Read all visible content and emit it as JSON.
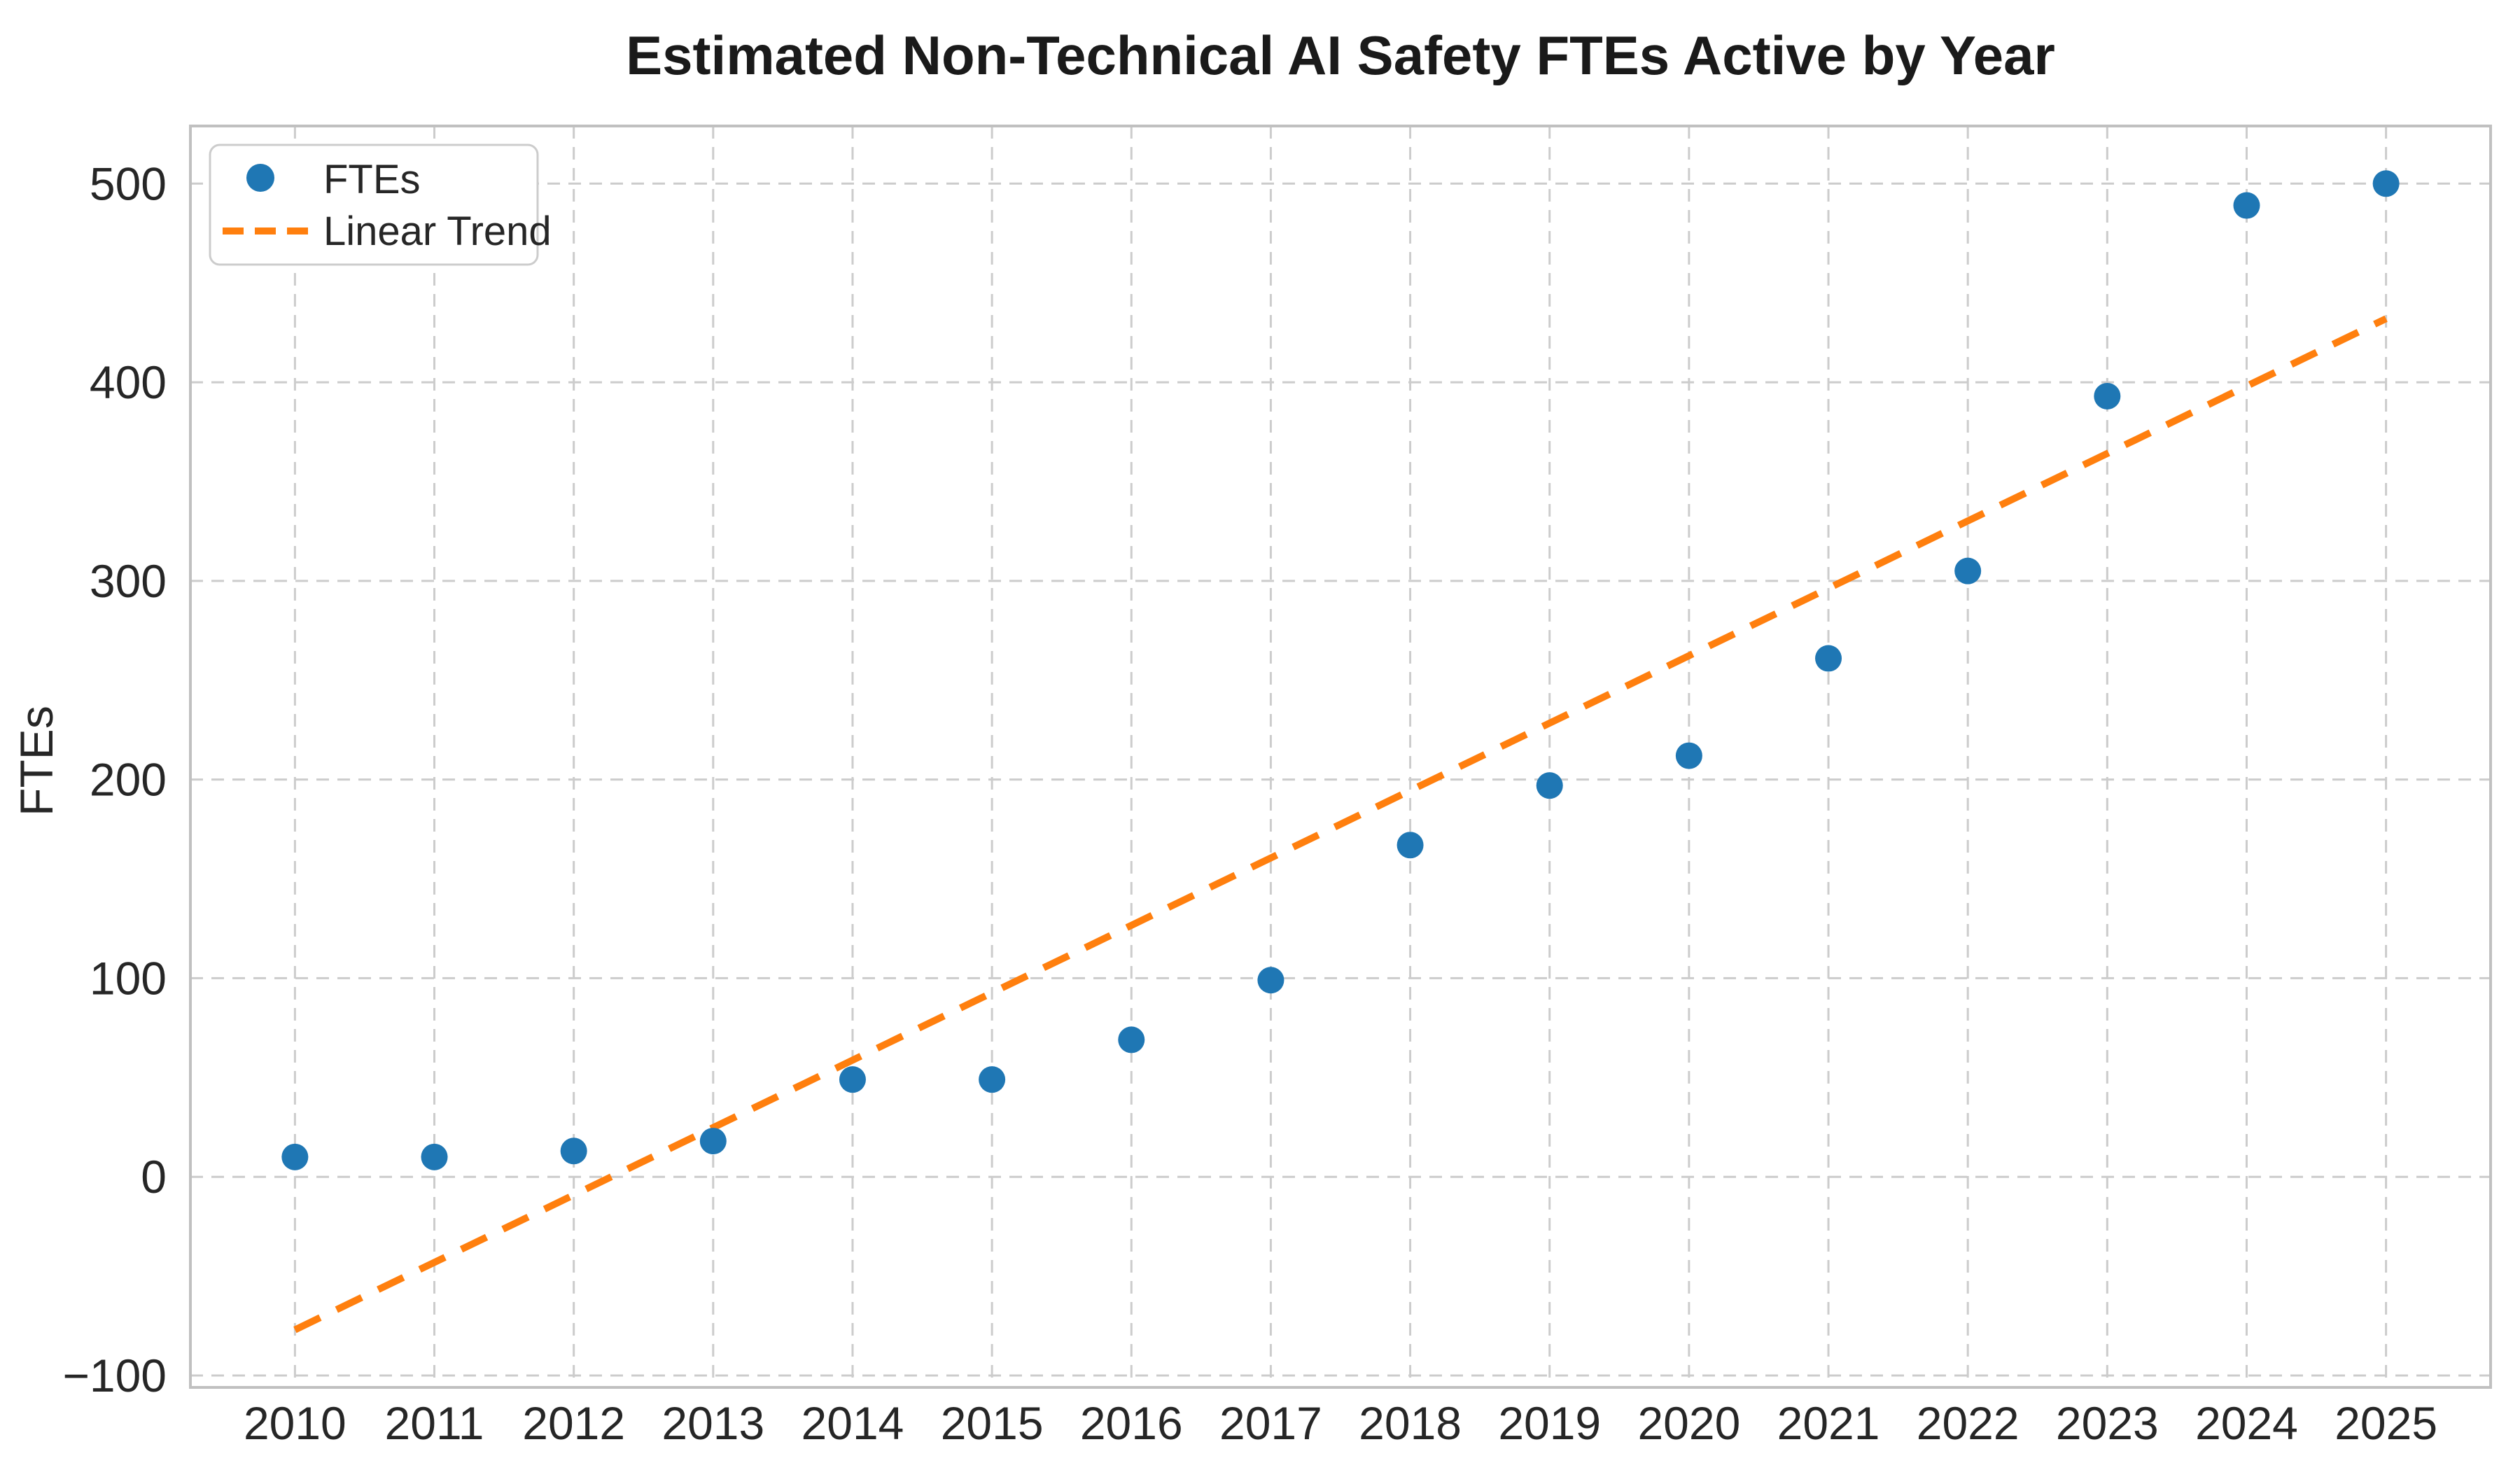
{
  "chart_data": {
    "type": "scatter",
    "title": "Estimated Non-Technical AI Safety FTEs Active by Year",
    "xlabel": "",
    "ylabel": "FTEs",
    "x": [
      2010,
      2011,
      2012,
      2013,
      2014,
      2015,
      2016,
      2017,
      2018,
      2019,
      2020,
      2021,
      2022,
      2023,
      2024,
      2025
    ],
    "series": [
      {
        "name": "FTEs",
        "type": "scatter",
        "color": "#1f77b4",
        "values": [
          10,
          10,
          13,
          18,
          49,
          49,
          69,
          99,
          167,
          197,
          212,
          261,
          305,
          393,
          489,
          500
        ]
      },
      {
        "name": "Linear Trend",
        "type": "line",
        "style": "dashed",
        "color": "#ff7f0e",
        "endpoints_x": [
          2010,
          2025
        ],
        "endpoints_y": [
          -77,
          432
        ],
        "slope_per_year": 34.0
      }
    ],
    "xticks": [
      "2010",
      "2011",
      "2012",
      "2013",
      "2014",
      "2015",
      "2016",
      "2017",
      "2018",
      "2019",
      "2020",
      "2021",
      "2022",
      "2023",
      "2024",
      "2025"
    ],
    "yticks": [
      "−100",
      "0",
      "100",
      "200",
      "300",
      "400",
      "500"
    ],
    "ytick_values": [
      -100,
      0,
      100,
      200,
      300,
      400,
      500
    ],
    "xlim": [
      2009.25,
      2025.75
    ],
    "ylim": [
      -106,
      529
    ],
    "grid": "dashed-both-axes",
    "legend": {
      "position": "upper-left",
      "entries": [
        {
          "label": "FTEs",
          "marker": "circle",
          "color": "#1f77b4"
        },
        {
          "label": "Linear Trend",
          "marker": "dashed-line",
          "color": "#ff7f0e"
        }
      ]
    }
  },
  "colors": {
    "point": "#1f77b4",
    "trend": "#ff7f0e",
    "grid": "#cccccc",
    "spine": "#c0c0c0",
    "text": "#262626",
    "background": "#ffffff"
  }
}
